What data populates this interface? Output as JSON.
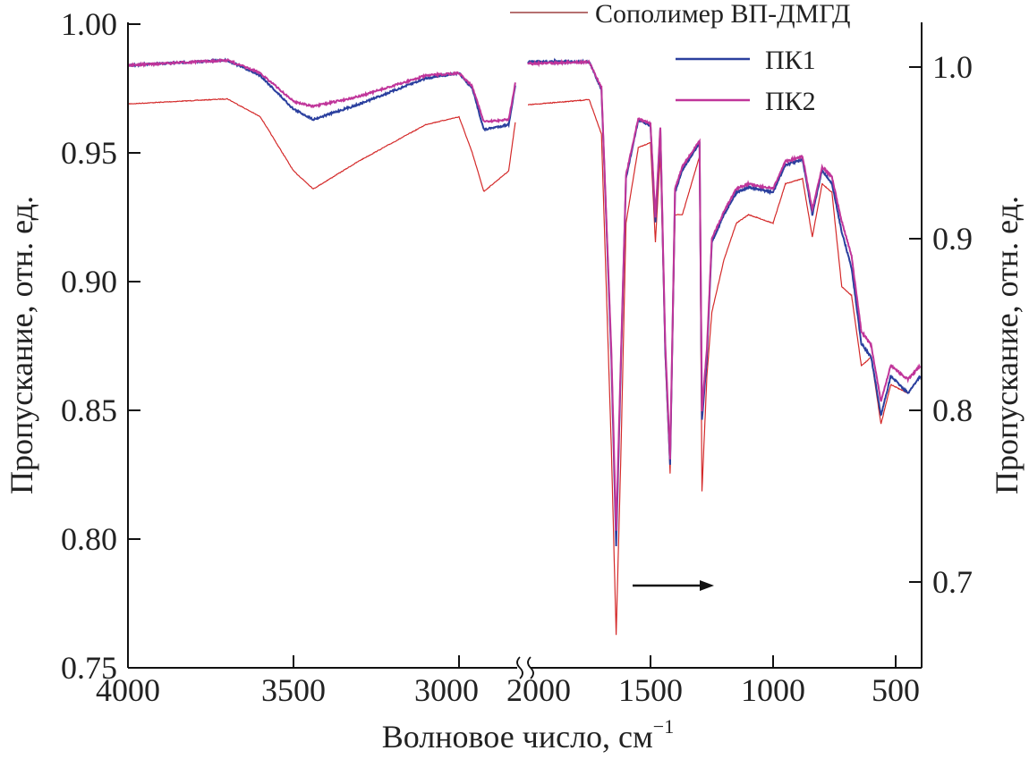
{
  "chart_data": {
    "type": "line",
    "xlabel": "Волновое число, см",
    "xlabel_sup": "−1",
    "ylabel_left": "Пропускание, отн. ед.",
    "ylabel_right": "Пропускание, отн. ед.",
    "x_axis_break": [
      2830,
      2000
    ],
    "x_ticks": [
      "4000",
      "3500",
      "3000",
      "2000",
      "1500",
      "1000",
      "500"
    ],
    "x_tick_values": [
      4000,
      3500,
      3000,
      2000,
      1500,
      1000,
      500
    ],
    "ylim_left": [
      0.75,
      1.0
    ],
    "y_ticks_left": [
      "0.75",
      "0.80",
      "0.85",
      "0.90",
      "0.95",
      "1.00"
    ],
    "ylim_right": [
      0.65,
      1.025
    ],
    "y_ticks_right": [
      "0.7",
      "0.8",
      "0.9",
      "1.0"
    ],
    "note": "region 4000–2830 cm-1 read on left axis; region 2000–400 cm-1 read on right axis (arrow)",
    "legend_position": "top-right",
    "series": [
      {
        "name": "Сополимер ВП-ДМГД",
        "color": "#d42a2a",
        "legend_color": "#8b1a1a",
        "left": {
          "x": [
            4000,
            3700,
            3600,
            3500,
            3440,
            3300,
            3100,
            3000,
            2960,
            2925,
            2850,
            2830
          ],
          "y": [
            0.969,
            0.971,
            0.964,
            0.943,
            0.936,
            0.947,
            0.961,
            0.964,
            0.95,
            0.935,
            0.943,
            0.962
          ]
        },
        "right": {
          "x": [
            2000,
            1750,
            1700,
            1660,
            1640,
            1620,
            1600,
            1550,
            1500,
            1480,
            1460,
            1440,
            1420,
            1400,
            1370,
            1300,
            1290,
            1270,
            1250,
            1200,
            1150,
            1100,
            1000,
            950,
            880,
            840,
            800,
            760,
            720,
            680,
            640,
            600,
            560,
            520,
            450,
            400
          ],
          "y": [
            0.978,
            0.981,
            0.961,
            0.779,
            0.669,
            0.779,
            0.909,
            0.953,
            0.956,
            0.898,
            0.95,
            0.831,
            0.763,
            0.914,
            0.914,
            0.948,
            0.753,
            0.82,
            0.857,
            0.888,
            0.909,
            0.914,
            0.909,
            0.932,
            0.935,
            0.901,
            0.932,
            0.927,
            0.872,
            0.867,
            0.826,
            0.831,
            0.792,
            0.815,
            0.81,
            0.82
          ]
        }
      },
      {
        "name": "ПК1",
        "color": "#2a3f9e",
        "left": {
          "x": [
            4000,
            3700,
            3600,
            3500,
            3440,
            3300,
            3100,
            3000,
            2960,
            2925,
            2850,
            2830
          ],
          "y": [
            0.984,
            0.986,
            0.98,
            0.967,
            0.963,
            0.969,
            0.979,
            0.981,
            0.975,
            0.959,
            0.961,
            0.976
          ]
        },
        "right": {
          "x": [
            2000,
            1750,
            1700,
            1660,
            1640,
            1620,
            1600,
            1550,
            1500,
            1480,
            1460,
            1440,
            1420,
            1400,
            1370,
            1300,
            1290,
            1270,
            1250,
            1200,
            1150,
            1100,
            1000,
            950,
            880,
            840,
            800,
            760,
            720,
            680,
            640,
            600,
            560,
            520,
            450,
            400
          ],
          "y": [
            1.003,
            1.003,
            0.987,
            0.831,
            0.721,
            0.831,
            0.935,
            0.969,
            0.966,
            0.909,
            0.964,
            0.836,
            0.768,
            0.927,
            0.94,
            0.956,
            0.794,
            0.831,
            0.898,
            0.914,
            0.927,
            0.93,
            0.927,
            0.943,
            0.946,
            0.914,
            0.94,
            0.932,
            0.904,
            0.883,
            0.839,
            0.831,
            0.797,
            0.82,
            0.81,
            0.82
          ]
        }
      },
      {
        "name": "ПК2",
        "color": "#c0359a",
        "left": {
          "x": [
            4000,
            3700,
            3600,
            3500,
            3440,
            3300,
            3100,
            3000,
            2960,
            2925,
            2850,
            2830
          ],
          "y": [
            0.984,
            0.986,
            0.981,
            0.97,
            0.968,
            0.972,
            0.98,
            0.981,
            0.976,
            0.962,
            0.963,
            0.977
          ]
        },
        "right": {
          "x": [
            2000,
            1750,
            1700,
            1660,
            1640,
            1620,
            1600,
            1550,
            1500,
            1480,
            1460,
            1440,
            1420,
            1400,
            1370,
            1300,
            1290,
            1270,
            1250,
            1200,
            1150,
            1100,
            1000,
            950,
            880,
            840,
            800,
            760,
            720,
            680,
            640,
            600,
            560,
            520,
            450,
            400
          ],
          "y": [
            1.002,
            1.003,
            0.988,
            0.835,
            0.73,
            0.835,
            0.937,
            0.97,
            0.967,
            0.912,
            0.965,
            0.84,
            0.772,
            0.929,
            0.942,
            0.957,
            0.8,
            0.836,
            0.9,
            0.916,
            0.929,
            0.932,
            0.929,
            0.945,
            0.948,
            0.917,
            0.942,
            0.936,
            0.91,
            0.89,
            0.846,
            0.838,
            0.805,
            0.826,
            0.818,
            0.826
          ]
        }
      }
    ]
  }
}
